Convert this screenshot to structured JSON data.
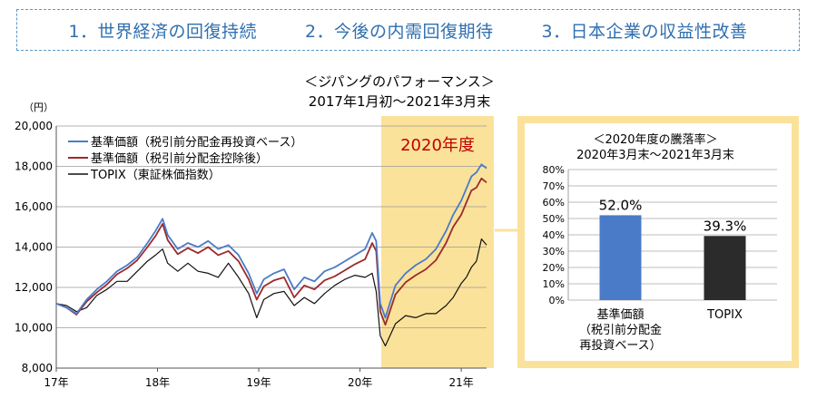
{
  "banner": {
    "items": [
      "1．世界経済の回復持続",
      "2．今後の内需回復期待",
      "3．日本企業の収益性改善"
    ]
  },
  "colors": {
    "nav_reinvested": "#4a7bc8",
    "nav_after_dividend": "#9b2b2b",
    "topix": "#111111",
    "highlight": "#fbe29a",
    "bar_fund": "#4a7bc8",
    "bar_topix": "#2b2b2b",
    "highlight_label": "#c00000"
  },
  "chart_data": [
    {
      "type": "line",
      "title": "＜ジパングのパフォーマンス＞",
      "subtitle": "2017年1月初～2021年3月末",
      "ylabel": "（円）",
      "ylim": [
        8000,
        20000
      ],
      "yticks": [
        "8,000",
        "10,000",
        "12,000",
        "14,000",
        "16,000",
        "18,000",
        "20,000"
      ],
      "ytick_values": [
        8000,
        10000,
        12000,
        14000,
        16000,
        18000,
        20000
      ],
      "xlim": [
        2017.0,
        2021.25
      ],
      "xticks": [
        "17年",
        "18年",
        "19年",
        "20年",
        "21年"
      ],
      "xtick_values": [
        2017,
        2018,
        2019,
        2020,
        2021
      ],
      "highlight": {
        "label": "2020年度",
        "from": 2020.21,
        "to": 2021.25
      },
      "legend_position": "top-left",
      "series": [
        {
          "name": "基準価額（税引前分配金再投資ベース）",
          "key": "nav_reinvested",
          "x": [
            2017.0,
            2017.1,
            2017.2,
            2017.3,
            2017.4,
            2017.5,
            2017.6,
            2017.7,
            2017.8,
            2017.9,
            2017.98,
            2018.05,
            2018.1,
            2018.2,
            2018.3,
            2018.4,
            2018.5,
            2018.6,
            2018.7,
            2018.8,
            2018.9,
            2018.98,
            2019.05,
            2019.15,
            2019.25,
            2019.35,
            2019.45,
            2019.55,
            2019.65,
            2019.75,
            2019.85,
            2019.95,
            2020.05,
            2020.12,
            2020.16,
            2020.2,
            2020.25,
            2020.35,
            2020.45,
            2020.55,
            2020.65,
            2020.75,
            2020.85,
            2020.92,
            2021.0,
            2021.05,
            2021.1,
            2021.15,
            2021.2,
            2021.25
          ],
          "y": [
            11200,
            11000,
            10700,
            11400,
            11900,
            12300,
            12800,
            13100,
            13500,
            14200,
            14800,
            15400,
            14600,
            13900,
            14200,
            14000,
            14300,
            13900,
            14100,
            13600,
            12700,
            11700,
            12400,
            12700,
            12900,
            11900,
            12500,
            12300,
            12800,
            13000,
            13300,
            13600,
            13900,
            14700,
            14300,
            11200,
            10500,
            12100,
            12700,
            13100,
            13400,
            13900,
            14800,
            15600,
            16300,
            16900,
            17500,
            17700,
            18100,
            17900
          ]
        },
        {
          "name": "基準価額（税引前分配金控除後）",
          "key": "nav_after_dividend",
          "x": [
            2017.0,
            2017.1,
            2017.2,
            2017.3,
            2017.4,
            2017.5,
            2017.6,
            2017.7,
            2017.8,
            2017.9,
            2017.98,
            2018.05,
            2018.1,
            2018.2,
            2018.3,
            2018.4,
            2018.5,
            2018.6,
            2018.7,
            2018.8,
            2018.9,
            2018.98,
            2019.05,
            2019.15,
            2019.25,
            2019.35,
            2019.45,
            2019.55,
            2019.65,
            2019.75,
            2019.85,
            2019.95,
            2020.05,
            2020.12,
            2020.16,
            2020.2,
            2020.25,
            2020.35,
            2020.45,
            2020.55,
            2020.65,
            2020.75,
            2020.85,
            2020.92,
            2021.0,
            2021.05,
            2021.1,
            2021.15,
            2021.2,
            2021.25
          ],
          "y": [
            11200,
            11000,
            10650,
            11300,
            11750,
            12150,
            12650,
            12950,
            13350,
            14000,
            14550,
            15150,
            14350,
            13650,
            13950,
            13700,
            14000,
            13600,
            13800,
            13300,
            12400,
            11400,
            12050,
            12350,
            12500,
            11500,
            12100,
            11900,
            12350,
            12550,
            12850,
            13150,
            13400,
            14200,
            13800,
            10800,
            10150,
            11650,
            12250,
            12600,
            12900,
            13350,
            14200,
            15000,
            15600,
            16200,
            16800,
            16950,
            17400,
            17200
          ]
        },
        {
          "name": "TOPIX（東証株価指数）",
          "key": "topix",
          "x": [
            2017.0,
            2017.1,
            2017.2,
            2017.3,
            2017.4,
            2017.5,
            2017.6,
            2017.7,
            2017.8,
            2017.9,
            2017.98,
            2018.05,
            2018.1,
            2018.2,
            2018.3,
            2018.4,
            2018.5,
            2018.6,
            2018.7,
            2018.8,
            2018.9,
            2018.98,
            2019.05,
            2019.15,
            2019.25,
            2019.35,
            2019.45,
            2019.55,
            2019.65,
            2019.75,
            2019.85,
            2019.95,
            2020.05,
            2020.12,
            2020.16,
            2020.2,
            2020.25,
            2020.35,
            2020.45,
            2020.55,
            2020.65,
            2020.75,
            2020.85,
            2020.92,
            2021.0,
            2021.05,
            2021.1,
            2021.15,
            2021.2,
            2021.25
          ],
          "y": [
            11200,
            11100,
            10800,
            11000,
            11600,
            11900,
            12300,
            12300,
            12800,
            13300,
            13600,
            13900,
            13200,
            12800,
            13200,
            12800,
            12700,
            12500,
            13200,
            12500,
            11700,
            10500,
            11400,
            11700,
            11800,
            11100,
            11500,
            11200,
            11700,
            12100,
            12400,
            12600,
            12500,
            12700,
            11800,
            9600,
            9100,
            10200,
            10600,
            10500,
            10700,
            10700,
            11100,
            11500,
            12200,
            12500,
            13000,
            13300,
            14400,
            14100
          ]
        }
      ]
    },
    {
      "type": "bar",
      "title": "＜2020年度の騰落率＞",
      "subtitle": "2020年3月末～2021年3月末",
      "categories": [
        {
          "lines": [
            "基準価額",
            "（税引前分配金",
            "再投資ベース）"
          ]
        },
        {
          "lines": [
            "TOPIX"
          ]
        }
      ],
      "values": [
        52.0,
        39.3
      ],
      "value_labels": [
        "52.0%",
        "39.3%"
      ],
      "ylim": [
        0,
        80
      ],
      "yticks": [
        "0%",
        "10%",
        "20%",
        "30%",
        "40%",
        "50%",
        "60%",
        "70%",
        "80%"
      ],
      "ytick_values": [
        0,
        10,
        20,
        30,
        40,
        50,
        60,
        70,
        80
      ]
    }
  ]
}
